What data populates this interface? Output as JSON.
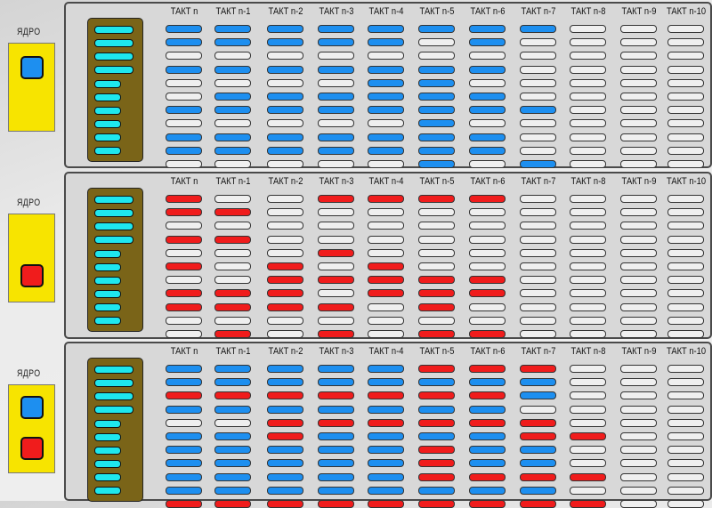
{
  "core_label": "ЯДРО",
  "columns": [
    "ТАКТ n",
    "ТАКТ n-1",
    "ТАКТ n-2",
    "ТАКТ n-3",
    "ТАКТ n-4",
    "ТАКТ n-5",
    "ТАКТ n-6",
    "ТАКТ n-7",
    "ТАКТ n-8",
    "ТАКТ n-9",
    "ТАКТ n-10"
  ],
  "colors": {
    "blue": "#1d8ff0",
    "red": "#f01c1c",
    "empty": "#efefef",
    "cyan": "#1ee7ee",
    "core": "#f7e400",
    "stack": "#7a6418"
  },
  "panels": [
    {
      "core_units": [
        "blue"
      ],
      "grid": [
        "bbbbbbbbeee",
        "bbbbbebeeee",
        "eeeeeeeeeee",
        "bbbbbbbeeee",
        "eeeebbeeeee",
        "ebbbbbbeeee",
        "bbbbbbbbeee",
        "eeeeebeeeee",
        "bbbbbbbeeee",
        "bbbbbbbeeee",
        "eeeeebebeee"
      ]
    },
    {
      "core_units": [
        "red"
      ],
      "grid": [
        "reerrrreeee",
        "rreeeeeeeee",
        "eeeeeeeeeee",
        "rreeeeeeeee",
        "eeereeeeeee",
        "rerereeeeee",
        "eerrrrreeee",
        "rrrerrreeee",
        "rrrrereeeee",
        "eeeeeeeeeee",
        "erererreeee"
      ]
    },
    {
      "core_units": [
        "blue",
        "red"
      ],
      "grid": [
        "bbbbbrrreee",
        "bbbbbbbbeee",
        "rrrrrrrbeee",
        "bbbbbbbeeee",
        "eerrrrrreee",
        "bbrbbbbrree",
        "bbbbbrbbeee",
        "bbbbbrbbeee",
        "bbbbbrrrree",
        "bbbbbbbbeee",
        "rrrrrrrrree"
      ]
    }
  ]
}
